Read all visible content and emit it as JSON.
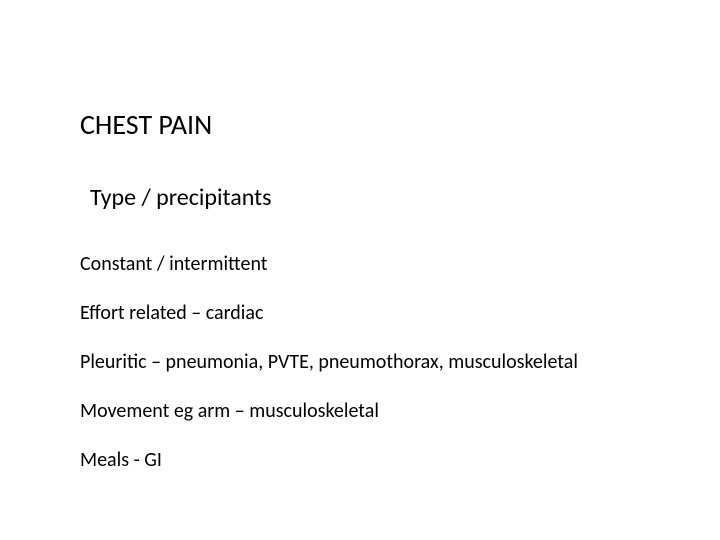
{
  "background_color": "#ffffff",
  "text_color": "#000000",
  "font_family": "Calibri",
  "title": {
    "text": "CHEST PAIN",
    "fontsize": 28,
    "fontweight": 400
  },
  "subtitle": {
    "text": "Type / precipitants",
    "fontsize": 24,
    "fontweight": 400
  },
  "body": {
    "fontsize": 20,
    "fontweight": 400,
    "line_height": 1.22,
    "lines": [
      "Constant / intermittent",
      "Effort related – cardiac",
      "Pleuritic – pneumonia, PVTE, pneumothorax, musculoskeletal",
      "Movement  eg arm – musculoskeletal",
      "Meals - GI"
    ]
  }
}
